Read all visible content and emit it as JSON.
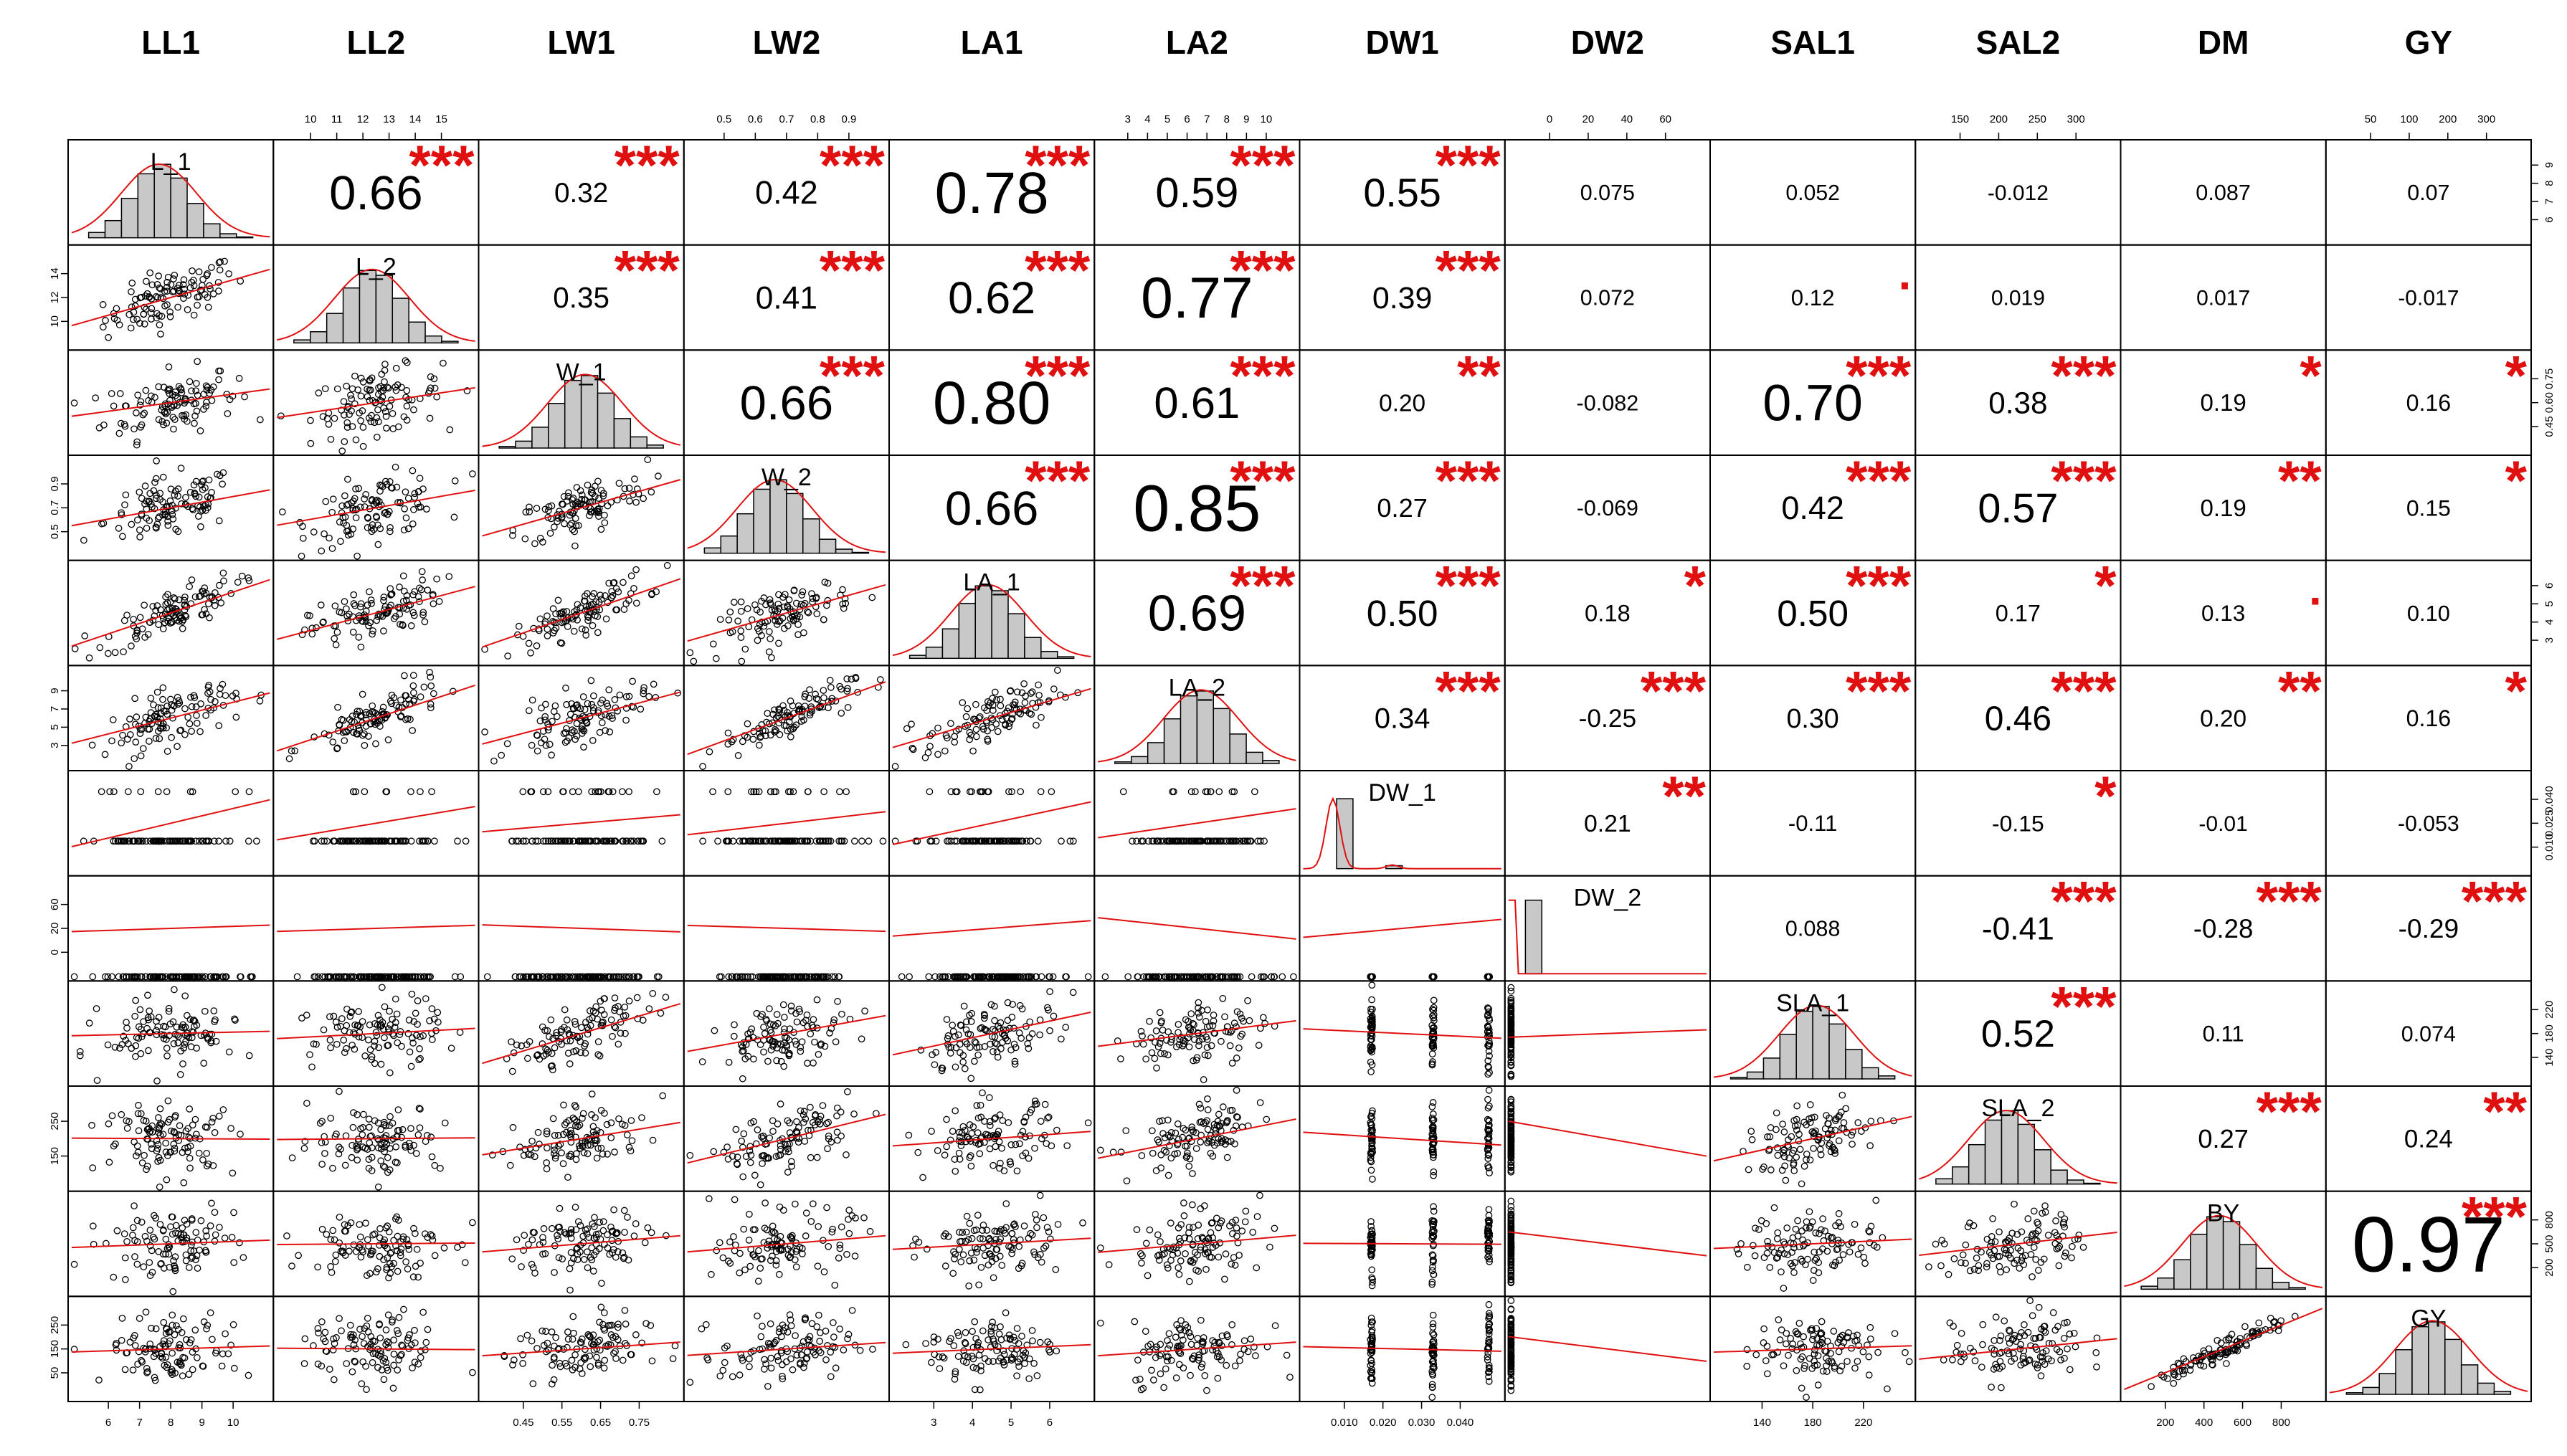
{
  "chart_data": {
    "type": "scatter",
    "title": "",
    "variables": [
      "LL1",
      "LL2",
      "LW1",
      "LW2",
      "LA1",
      "LA2",
      "DW1",
      "DW2",
      "SAL1",
      "SAL2",
      "DM",
      "GY"
    ],
    "diagonal_labels": [
      "L_1",
      "L_2",
      "W_1",
      "W_2",
      "LA_1",
      "LA_2",
      "DW_1",
      "DW_2",
      "SLA_1",
      "SLA_2",
      "BY",
      "GY"
    ],
    "ranges": [
      [
        6,
        10
      ],
      [
        10,
        15
      ],
      [
        0.45,
        0.75
      ],
      [
        0.5,
        0.9
      ],
      [
        2,
        6
      ],
      [
        3,
        10
      ],
      [
        0.01,
        0.04
      ],
      [
        0,
        70
      ],
      [
        140,
        220
      ],
      [
        150,
        300
      ],
      [
        200,
        800
      ],
      [
        50,
        300
      ]
    ],
    "axis_ticks": {
      "top": [
        {
          "var": 1,
          "labels": [
            "10",
            "11",
            "12",
            "13",
            "14",
            "15"
          ]
        },
        {
          "var": 3,
          "labels": [
            "0.5",
            "0.6",
            "0.7",
            "0.8",
            "0.9"
          ]
        },
        {
          "var": 5,
          "labels": [
            "3",
            "4",
            "5",
            "6",
            "7",
            "8",
            "9",
            "10"
          ]
        },
        {
          "var": 7,
          "labels": [
            "0",
            "20",
            "40",
            "60"
          ]
        },
        {
          "var": 9,
          "labels": [
            "150",
            "200",
            "250",
            "300"
          ]
        },
        {
          "var": 11,
          "labels": [
            "50",
            "100",
            "200",
            "300"
          ]
        }
      ],
      "bottom": [
        {
          "var": 0,
          "labels": [
            "6",
            "7",
            "8",
            "9",
            "10"
          ]
        },
        {
          "var": 2,
          "labels": [
            "0.45",
            "0.55",
            "0.65",
            "0.75"
          ]
        },
        {
          "var": 4,
          "labels": [
            "3",
            "4",
            "5",
            "6"
          ]
        },
        {
          "var": 6,
          "labels": [
            "0.010",
            "0.020",
            "0.030",
            "0.040"
          ]
        },
        {
          "var": 8,
          "labels": [
            "140",
            "180",
            "220"
          ]
        },
        {
          "var": 10,
          "labels": [
            "200",
            "400",
            "600",
            "800"
          ]
        }
      ],
      "left": [
        {
          "var": 1,
          "labels": [
            "10",
            "12",
            "14"
          ]
        },
        {
          "var": 3,
          "labels": [
            "0.5",
            "0.7",
            "0.9"
          ]
        },
        {
          "var": 5,
          "labels": [
            "3",
            "5",
            "7",
            "9"
          ]
        },
        {
          "var": 7,
          "labels": [
            "0",
            "20",
            "60"
          ]
        },
        {
          "var": 9,
          "labels": [
            "150",
            "250"
          ]
        },
        {
          "var": 11,
          "labels": [
            "50",
            "150",
            "250"
          ]
        }
      ],
      "right": [
        {
          "var": 0,
          "labels": [
            "6",
            "7",
            "8",
            "9"
          ]
        },
        {
          "var": 2,
          "labels": [
            "0.45",
            "0.60",
            "0.75"
          ]
        },
        {
          "var": 4,
          "labels": [
            "3",
            "4",
            "5",
            "6"
          ]
        },
        {
          "var": 6,
          "labels": [
            "0.010",
            "0.025",
            "0.040"
          ]
        },
        {
          "var": 8,
          "labels": [
            "140",
            "180",
            "220"
          ]
        },
        {
          "var": 10,
          "labels": [
            "200",
            "500",
            "800"
          ]
        }
      ]
    },
    "correlations": [
      {
        "r": 0,
        "c": 1,
        "value": 0.66,
        "label": "0.66",
        "stars": "***"
      },
      {
        "r": 0,
        "c": 2,
        "value": 0.32,
        "label": "0.32",
        "stars": "***"
      },
      {
        "r": 0,
        "c": 3,
        "value": 0.42,
        "label": "0.42",
        "stars": "***"
      },
      {
        "r": 0,
        "c": 4,
        "value": 0.78,
        "label": "0.78",
        "stars": "***"
      },
      {
        "r": 0,
        "c": 5,
        "value": 0.59,
        "label": "0.59",
        "stars": "***"
      },
      {
        "r": 0,
        "c": 6,
        "value": 0.55,
        "label": "0.55",
        "stars": "***"
      },
      {
        "r": 0,
        "c": 7,
        "value": 0.075,
        "label": "0.075",
        "stars": ""
      },
      {
        "r": 0,
        "c": 8,
        "value": 0.052,
        "label": "0.052",
        "stars": ""
      },
      {
        "r": 0,
        "c": 9,
        "value": -0.012,
        "label": "-0.012",
        "stars": ""
      },
      {
        "r": 0,
        "c": 10,
        "value": 0.087,
        "label": "0.087",
        "stars": ""
      },
      {
        "r": 0,
        "c": 11,
        "value": 0.07,
        "label": "0.07",
        "stars": ""
      },
      {
        "r": 1,
        "c": 2,
        "value": 0.35,
        "label": "0.35",
        "stars": "***"
      },
      {
        "r": 1,
        "c": 3,
        "value": 0.41,
        "label": "0.41",
        "stars": "***"
      },
      {
        "r": 1,
        "c": 4,
        "value": 0.62,
        "label": "0.62",
        "stars": "***"
      },
      {
        "r": 1,
        "c": 5,
        "value": 0.77,
        "label": "0.77",
        "stars": "***"
      },
      {
        "r": 1,
        "c": 6,
        "value": 0.39,
        "label": "0.39",
        "stars": "***"
      },
      {
        "r": 1,
        "c": 7,
        "value": 0.072,
        "label": "0.072",
        "stars": ""
      },
      {
        "r": 1,
        "c": 8,
        "value": 0.12,
        "label": "0.12",
        "stars": "."
      },
      {
        "r": 1,
        "c": 9,
        "value": 0.019,
        "label": "0.019",
        "stars": ""
      },
      {
        "r": 1,
        "c": 10,
        "value": 0.017,
        "label": "0.017",
        "stars": ""
      },
      {
        "r": 1,
        "c": 11,
        "value": -0.017,
        "label": "-0.017",
        "stars": ""
      },
      {
        "r": 2,
        "c": 3,
        "value": 0.66,
        "label": "0.66",
        "stars": "***"
      },
      {
        "r": 2,
        "c": 4,
        "value": 0.8,
        "label": "0.80",
        "stars": "***"
      },
      {
        "r": 2,
        "c": 5,
        "value": 0.61,
        "label": "0.61",
        "stars": "***"
      },
      {
        "r": 2,
        "c": 6,
        "value": 0.2,
        "label": "0.20",
        "stars": "**"
      },
      {
        "r": 2,
        "c": 7,
        "value": -0.082,
        "label": "-0.082",
        "stars": ""
      },
      {
        "r": 2,
        "c": 8,
        "value": 0.7,
        "label": "0.70",
        "stars": "***"
      },
      {
        "r": 2,
        "c": 9,
        "value": 0.38,
        "label": "0.38",
        "stars": "***"
      },
      {
        "r": 2,
        "c": 10,
        "value": 0.19,
        "label": "0.19",
        "stars": "*"
      },
      {
        "r": 2,
        "c": 11,
        "value": 0.16,
        "label": "0.16",
        "stars": "*"
      },
      {
        "r": 3,
        "c": 4,
        "value": 0.66,
        "label": "0.66",
        "stars": "***"
      },
      {
        "r": 3,
        "c": 5,
        "value": 0.85,
        "label": "0.85",
        "stars": "***"
      },
      {
        "r": 3,
        "c": 6,
        "value": 0.27,
        "label": "0.27",
        "stars": "***"
      },
      {
        "r": 3,
        "c": 7,
        "value": -0.069,
        "label": "-0.069",
        "stars": ""
      },
      {
        "r": 3,
        "c": 8,
        "value": 0.42,
        "label": "0.42",
        "stars": "***"
      },
      {
        "r": 3,
        "c": 9,
        "value": 0.57,
        "label": "0.57",
        "stars": "***"
      },
      {
        "r": 3,
        "c": 10,
        "value": 0.19,
        "label": "0.19",
        "stars": "**"
      },
      {
        "r": 3,
        "c": 11,
        "value": 0.15,
        "label": "0.15",
        "stars": "*"
      },
      {
        "r": 4,
        "c": 5,
        "value": 0.69,
        "label": "0.69",
        "stars": "***"
      },
      {
        "r": 4,
        "c": 6,
        "value": 0.5,
        "label": "0.50",
        "stars": "***"
      },
      {
        "r": 4,
        "c": 7,
        "value": 0.18,
        "label": "0.18",
        "stars": "*"
      },
      {
        "r": 4,
        "c": 8,
        "value": 0.5,
        "label": "0.50",
        "stars": "***"
      },
      {
        "r": 4,
        "c": 9,
        "value": 0.17,
        "label": "0.17",
        "stars": "*"
      },
      {
        "r": 4,
        "c": 10,
        "value": 0.13,
        "label": "0.13",
        "stars": "."
      },
      {
        "r": 4,
        "c": 11,
        "value": 0.1,
        "label": "0.10",
        "stars": ""
      },
      {
        "r": 5,
        "c": 6,
        "value": 0.34,
        "label": "0.34",
        "stars": "***"
      },
      {
        "r": 5,
        "c": 7,
        "value": -0.25,
        "label": "-0.25",
        "stars": "***"
      },
      {
        "r": 5,
        "c": 8,
        "value": 0.3,
        "label": "0.30",
        "stars": "***"
      },
      {
        "r": 5,
        "c": 9,
        "value": 0.46,
        "label": "0.46",
        "stars": "***"
      },
      {
        "r": 5,
        "c": 10,
        "value": 0.2,
        "label": "0.20",
        "stars": "**"
      },
      {
        "r": 5,
        "c": 11,
        "value": 0.16,
        "label": "0.16",
        "stars": "*"
      },
      {
        "r": 6,
        "c": 7,
        "value": 0.21,
        "label": "0.21",
        "stars": "**"
      },
      {
        "r": 6,
        "c": 8,
        "value": -0.11,
        "label": "-0.11",
        "stars": ""
      },
      {
        "r": 6,
        "c": 9,
        "value": -0.15,
        "label": "-0.15",
        "stars": "*"
      },
      {
        "r": 6,
        "c": 10,
        "value": -0.01,
        "label": "-0.01",
        "stars": ""
      },
      {
        "r": 6,
        "c": 11,
        "value": -0.053,
        "label": "-0.053",
        "stars": ""
      },
      {
        "r": 7,
        "c": 8,
        "value": 0.088,
        "label": "0.088",
        "stars": ""
      },
      {
        "r": 7,
        "c": 9,
        "value": -0.41,
        "label": "-0.41",
        "stars": "***"
      },
      {
        "r": 7,
        "c": 10,
        "value": -0.28,
        "label": "-0.28",
        "stars": "***"
      },
      {
        "r": 7,
        "c": 11,
        "value": -0.29,
        "label": "-0.29",
        "stars": "***"
      },
      {
        "r": 8,
        "c": 9,
        "value": 0.52,
        "label": "0.52",
        "stars": "***"
      },
      {
        "r": 8,
        "c": 10,
        "value": 0.11,
        "label": "0.11",
        "stars": ""
      },
      {
        "r": 8,
        "c": 11,
        "value": 0.074,
        "label": "0.074",
        "stars": ""
      },
      {
        "r": 9,
        "c": 10,
        "value": 0.27,
        "label": "0.27",
        "stars": "***"
      },
      {
        "r": 9,
        "c": 11,
        "value": 0.24,
        "label": "0.24",
        "stars": "**"
      },
      {
        "r": 10,
        "c": 11,
        "value": 0.97,
        "label": "0.97",
        "stars": "***"
      }
    ],
    "colors": {
      "points": "#000000",
      "fit_line": "#e01010",
      "stars": "#e01010",
      "hist_fill": "#c8c8c8",
      "density": "#e01010"
    },
    "grid": false
  }
}
